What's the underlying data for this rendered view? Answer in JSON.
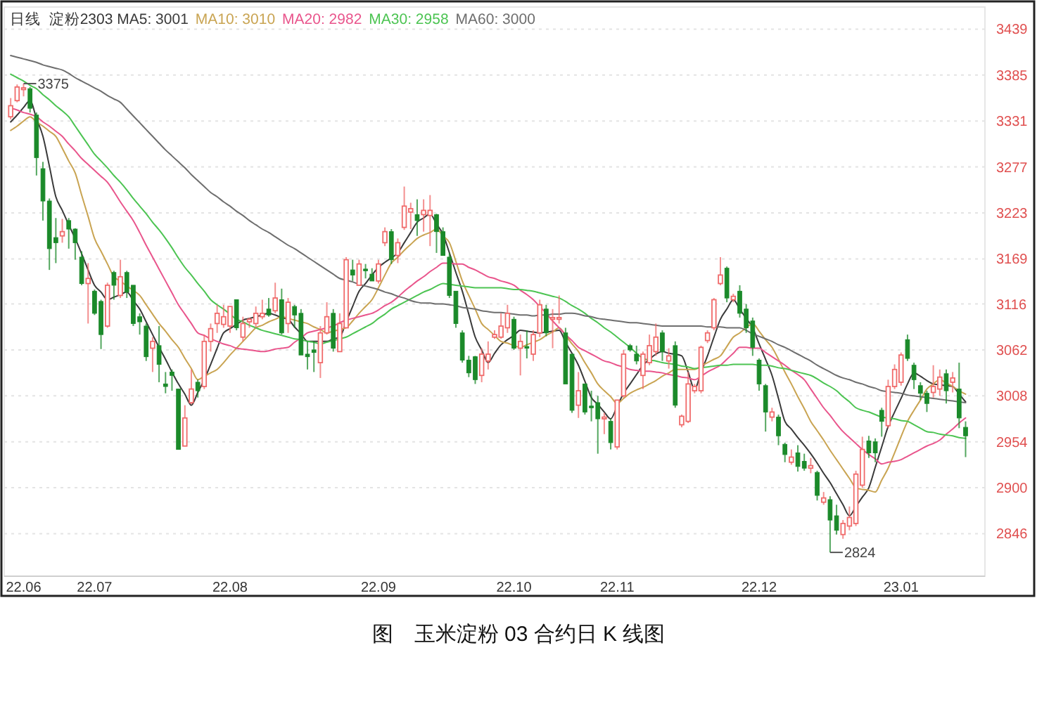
{
  "chart_data": {
    "type": "candlestick",
    "title": "图　玉米淀粉 03 合约日 K 线图",
    "legend_title": "日线  淀粉2303",
    "legend": "top left",
    "grid": "y",
    "marker": "none",
    "line_style": "solid",
    "categories": [
      null,
      null,
      "22.06",
      null,
      null,
      null,
      null,
      null,
      null,
      null,
      null,
      null,
      null,
      "22.07",
      null,
      null,
      null,
      null,
      null,
      null,
      null,
      null,
      null,
      null,
      null,
      null,
      null,
      null,
      null,
      null,
      null,
      null,
      null,
      null,
      "22.08",
      null,
      null,
      null,
      null,
      null,
      null,
      null,
      null,
      null,
      null,
      null,
      null,
      null,
      null,
      null,
      null,
      null,
      null,
      null,
      null,
      null,
      null,
      "22.09",
      null,
      null,
      null,
      null,
      null,
      null,
      null,
      null,
      null,
      null,
      null,
      null,
      null,
      null,
      null,
      null,
      null,
      null,
      null,
      null,
      "22.10",
      null,
      null,
      null,
      null,
      null,
      null,
      null,
      null,
      null,
      null,
      null,
      null,
      null,
      null,
      null,
      "22.11",
      null,
      null,
      null,
      null,
      null,
      null,
      null,
      null,
      null,
      null,
      null,
      null,
      null,
      null,
      null,
      null,
      null,
      null,
      null,
      null,
      null,
      "22.12",
      null,
      null,
      null,
      null,
      null,
      null,
      null,
      null,
      null,
      null,
      null,
      null,
      null,
      null,
      null,
      null,
      null,
      null,
      null,
      null,
      null,
      "23.01",
      null,
      null,
      null,
      null,
      null,
      null,
      null,
      null,
      null,
      null
    ],
    "ylim": [
      2796,
      3465
    ],
    "yticks": [
      3439,
      3385,
      3331,
      3277,
      3223,
      3169,
      3116,
      3062,
      3008,
      2954,
      2900,
      2846
    ],
    "ohlc": [
      [
        3336,
        3358,
        3333,
        3349
      ],
      [
        3355,
        3374,
        3353,
        3371
      ],
      [
        3368,
        3375,
        3360,
        3370
      ],
      [
        3369,
        3371,
        3341,
        3346
      ],
      [
        3338,
        3341,
        3267,
        3288
      ],
      [
        3275,
        3283,
        3214,
        3237
      ],
      [
        3237,
        3240,
        3156,
        3181
      ],
      [
        3194,
        3217,
        3164,
        3188
      ],
      [
        3196,
        3216,
        3188,
        3201
      ],
      [
        3214,
        3217,
        3181,
        3204
      ],
      [
        3204,
        3205,
        3168,
        3188
      ],
      [
        3171,
        3178,
        3138,
        3140
      ],
      [
        3140,
        3164,
        3093,
        3146
      ],
      [
        3131,
        3133,
        3103,
        3105
      ],
      [
        3119,
        3121,
        3063,
        3080
      ],
      [
        3090,
        3141,
        3088,
        3138
      ],
      [
        3153,
        3155,
        3121,
        3138
      ],
      [
        3126,
        3168,
        3123,
        3148
      ],
      [
        3153,
        3155,
        3123,
        3130
      ],
      [
        3138,
        3138,
        3090,
        3093
      ],
      [
        3101,
        3105,
        3080,
        3095
      ],
      [
        3090,
        3093,
        3049,
        3054
      ],
      [
        3064,
        3077,
        3036,
        3072
      ],
      [
        3067,
        3090,
        3024,
        3045
      ],
      [
        3022,
        3036,
        3011,
        3019
      ],
      [
        3036,
        3039,
        3014,
        3032
      ],
      [
        3016,
        3016,
        2945,
        2945
      ],
      [
        2949,
        2997,
        2949,
        2982
      ],
      [
        3000,
        3039,
        2998,
        3016
      ],
      [
        3024,
        3027,
        3006,
        3014
      ],
      [
        3019,
        3080,
        3016,
        3072
      ],
      [
        3072,
        3093,
        3060,
        3087
      ],
      [
        3093,
        3115,
        3082,
        3105
      ],
      [
        3092,
        3115,
        3088,
        3101
      ],
      [
        3090,
        3113,
        3082,
        3113
      ],
      [
        3121,
        3121,
        3085,
        3088
      ],
      [
        3077,
        3101,
        3072,
        3093
      ],
      [
        3095,
        3100,
        3088,
        3098
      ],
      [
        3093,
        3113,
        3088,
        3105
      ],
      [
        3101,
        3121,
        3098,
        3105
      ],
      [
        3110,
        3123,
        3101,
        3103
      ],
      [
        3108,
        3141,
        3105,
        3123
      ],
      [
        3121,
        3134,
        3080,
        3082
      ],
      [
        3093,
        3123,
        3082,
        3118
      ],
      [
        3113,
        3115,
        3088,
        3103
      ],
      [
        3105,
        3110,
        3056,
        3056
      ],
      [
        3057,
        3072,
        3039,
        3054
      ],
      [
        3062,
        3072,
        3036,
        3059
      ],
      [
        3047,
        3090,
        3029,
        3082
      ],
      [
        3082,
        3118,
        3080,
        3101
      ],
      [
        3105,
        3110,
        3060,
        3064
      ],
      [
        3060,
        3105,
        3060,
        3093
      ],
      [
        3088,
        3171,
        3088,
        3168
      ],
      [
        3156,
        3168,
        3143,
        3150
      ],
      [
        3138,
        3168,
        3138,
        3163
      ],
      [
        3157,
        3163,
        3146,
        3155
      ],
      [
        3151,
        3158,
        3143,
        3143
      ],
      [
        3143,
        3168,
        3140,
        3163
      ],
      [
        3188,
        3206,
        3184,
        3201
      ],
      [
        3201,
        3204,
        3163,
        3168
      ],
      [
        3173,
        3193,
        3164,
        3188
      ],
      [
        3206,
        3254,
        3203,
        3231
      ],
      [
        3224,
        3235,
        3204,
        3228
      ],
      [
        3221,
        3239,
        3196,
        3214
      ],
      [
        3221,
        3239,
        3201,
        3226
      ],
      [
        3220,
        3244,
        3184,
        3226
      ],
      [
        3221,
        3222,
        3176,
        3201
      ],
      [
        3201,
        3206,
        3173,
        3173
      ],
      [
        3171,
        3176,
        3123,
        3126
      ],
      [
        3131,
        3131,
        3088,
        3093
      ],
      [
        3082,
        3085,
        3047,
        3050
      ],
      [
        3050,
        3055,
        3030,
        3035
      ],
      [
        3054,
        3055,
        3022,
        3027
      ],
      [
        3032,
        3064,
        3024,
        3057
      ],
      [
        3049,
        3072,
        3039,
        3057
      ],
      [
        3077,
        3085,
        3075,
        3080
      ],
      [
        3077,
        3105,
        3075,
        3090
      ],
      [
        3088,
        3115,
        3082,
        3105
      ],
      [
        3098,
        3101,
        3062,
        3064
      ],
      [
        3064,
        3080,
        3032,
        3072
      ],
      [
        3066,
        3085,
        3052,
        3064
      ],
      [
        3057,
        3085,
        3049,
        3080
      ],
      [
        3082,
        3121,
        3077,
        3115
      ],
      [
        3110,
        3115,
        3078,
        3082
      ],
      [
        3098,
        3110,
        3064,
        3100
      ],
      [
        3098,
        3126,
        3093,
        3100
      ],
      [
        3082,
        3088,
        3022,
        3022
      ],
      [
        3057,
        3057,
        2988,
        2991
      ],
      [
        2997,
        3036,
        2982,
        3014
      ],
      [
        3022,
        3022,
        2986,
        2989
      ],
      [
        2996,
        3014,
        2978,
        2994
      ],
      [
        3000,
        3008,
        2940,
        2981
      ],
      [
        2981,
        2988,
        2963,
        2983
      ],
      [
        2978,
        2981,
        2945,
        2953
      ],
      [
        2948,
        3003,
        2945,
        3003
      ],
      [
        3008,
        3062,
        3006,
        3057
      ],
      [
        3067,
        3069,
        3060,
        3062
      ],
      [
        3057,
        3067,
        3045,
        3049
      ],
      [
        3032,
        3060,
        3016,
        3057
      ],
      [
        3047,
        3080,
        3044,
        3067
      ],
      [
        3060,
        3093,
        3055,
        3077
      ],
      [
        3082,
        3085,
        3049,
        3060
      ],
      [
        3049,
        3064,
        3040,
        3055
      ],
      [
        3067,
        3072,
        2994,
        2997
      ],
      [
        2974,
        2986,
        2971,
        2984
      ],
      [
        2978,
        3036,
        2976,
        3022
      ],
      [
        3014,
        3022,
        3011,
        3019
      ],
      [
        3014,
        3067,
        3011,
        3065
      ],
      [
        3073,
        3085,
        3070,
        3082
      ],
      [
        3088,
        3123,
        3085,
        3121
      ],
      [
        3140,
        3171,
        3138,
        3150
      ],
      [
        3158,
        3160,
        3118,
        3123
      ],
      [
        3121,
        3128,
        3118,
        3125
      ],
      [
        3131,
        3138,
        3100,
        3105
      ],
      [
        3110,
        3116,
        3082,
        3088
      ],
      [
        3096,
        3100,
        3055,
        3065
      ],
      [
        3050,
        3052,
        3014,
        3022
      ],
      [
        3020,
        3022,
        2966,
        2989
      ],
      [
        2983,
        2994,
        2978,
        2989
      ],
      [
        2983,
        2986,
        2950,
        2961
      ],
      [
        2951,
        2953,
        2930,
        2939
      ],
      [
        2930,
        2945,
        2927,
        2936
      ],
      [
        2941,
        2950,
        2919,
        2925
      ],
      [
        2931,
        2940,
        2920,
        2923
      ],
      [
        2923,
        2935,
        2917,
        2926
      ],
      [
        2918,
        2920,
        2885,
        2891
      ],
      [
        2883,
        2895,
        2880,
        2888
      ],
      [
        2886,
        2890,
        2824,
        2862
      ],
      [
        2867,
        2880,
        2845,
        2850
      ],
      [
        2845,
        2862,
        2840,
        2858
      ],
      [
        2855,
        2878,
        2850,
        2865
      ],
      [
        2858,
        2920,
        2855,
        2916
      ],
      [
        2903,
        2960,
        2900,
        2945
      ],
      [
        2955,
        2961,
        2935,
        2941
      ],
      [
        2954,
        2958,
        2930,
        2941
      ],
      [
        2991,
        2994,
        2960,
        2978
      ],
      [
        2973,
        3027,
        2970,
        3019
      ],
      [
        3019,
        3045,
        3016,
        3039
      ],
      [
        3024,
        3059,
        3020,
        3056
      ],
      [
        3074,
        3080,
        3049,
        3052
      ],
      [
        3044,
        3047,
        3016,
        3027
      ],
      [
        3020,
        3024,
        3003,
        3011
      ],
      [
        3011,
        3014,
        2989,
        2999
      ],
      [
        3012,
        3044,
        3006,
        3019
      ],
      [
        3016,
        3039,
        3008,
        3030
      ],
      [
        3034,
        3039,
        2999,
        3014
      ],
      [
        3024,
        3036,
        3012,
        3029
      ],
      [
        3016,
        3047,
        2970,
        2982
      ],
      [
        2971,
        2978,
        2936,
        2961
      ]
    ],
    "series": [
      {
        "type": "line",
        "name": "MA5: 3001",
        "color": "#3a3a3a",
        "values": [
          3330,
          3338,
          3347,
          3355,
          3334,
          3313,
          3278,
          3242,
          3226,
          3209,
          3193,
          3175,
          3156,
          3138,
          3130,
          3121,
          3124,
          3127,
          3130,
          3120,
          3110,
          3095,
          3080,
          3065,
          3051,
          3036,
          3022,
          3010,
          2997,
          3012,
          3027,
          3045,
          3064,
          3082,
          3087,
          3092,
          3097,
          3099,
          3101,
          3103,
          3105,
          3103,
          3100,
          3098,
          3089,
          3081,
          3072,
          3072,
          3072,
          3072,
          3075,
          3077,
          3095,
          3113,
          3131,
          3140,
          3150,
          3159,
          3165,
          3170,
          3176,
          3188,
          3200,
          3212,
          3217,
          3222,
          3210,
          3198,
          3176,
          3153,
          3131,
          3104,
          3077,
          3062,
          3047,
          3058,
          3068,
          3074,
          3079,
          3085,
          3084,
          3083,
          3082,
          3083,
          3084,
          3085,
          3071,
          3058,
          3044,
          3025,
          3006,
          2998,
          2989,
          2981,
          2996,
          3011,
          3022,
          3033,
          3044,
          3051,
          3057,
          3060,
          3058,
          3057,
          3055,
          3036,
          3016,
          3036,
          3055,
          3077,
          3098,
          3110,
          3121,
          3110,
          3099,
          3088,
          3069,
          3051,
          3032,
          3005,
          2978,
          2969,
          2959,
          2950,
          2940,
          2929,
          2917,
          2906,
          2893,
          2880,
          2867,
          2878,
          2889,
          2900,
          2924,
          2948,
          2972,
          2989,
          3005,
          3022,
          3035,
          3031,
          3026,
          3022,
          3021,
          3020,
          3019,
          3010,
          3001
        ]
      },
      {
        "type": "line",
        "name": "MA10: 3010",
        "color": "#c9a452",
        "values": [
          3320,
          3325,
          3331,
          3336,
          3330,
          3325,
          3319,
          3313,
          3299,
          3284,
          3270,
          3244,
          3219,
          3193,
          3178,
          3163,
          3148,
          3143,
          3137,
          3132,
          3126,
          3115,
          3104,
          3093,
          3084,
          3074,
          3065,
          3052,
          3040,
          3027,
          3031,
          3035,
          3039,
          3047,
          3056,
          3064,
          3072,
          3080,
          3088,
          3091,
          3095,
          3098,
          3101,
          3099,
          3097,
          3095,
          3093,
          3089,
          3086,
          3082,
          3084,
          3086,
          3088,
          3096,
          3105,
          3113,
          3121,
          3135,
          3150,
          3164,
          3171,
          3179,
          3186,
          3193,
          3197,
          3200,
          3204,
          3196,
          3188,
          3166,
          3143,
          3126,
          3110,
          3093,
          3086,
          3079,
          3072,
          3070,
          3067,
          3065,
          3068,
          3071,
          3074,
          3079,
          3083,
          3088,
          3079,
          3069,
          3060,
          3047,
          3035,
          3022,
          3014,
          3007,
          2999,
          3005,
          3011,
          3015,
          3018,
          3022,
          3026,
          3031,
          3035,
          3039,
          3039,
          3039,
          3039,
          3043,
          3047,
          3051,
          3055,
          3066,
          3077,
          3082,
          3088,
          3093,
          3084,
          3074,
          3065,
          3051,
          3036,
          3022,
          3007,
          2993,
          2978,
          2967,
          2956,
          2944,
          2933,
          2922,
          2911,
          2900,
          2898,
          2897,
          2895,
          2909,
          2923,
          2941,
          2960,
          2978,
          2991,
          3003,
          3016,
          3022,
          3027,
          3023,
          3019,
          3014,
          3010
        ]
      },
      {
        "type": "line",
        "name": "MA20: 2982",
        "color": "#e9558c",
        "values": [
          3346,
          3344,
          3341,
          3339,
          3336,
          3330,
          3325,
          3319,
          3313,
          3304,
          3296,
          3287,
          3280,
          3273,
          3266,
          3259,
          3248,
          3236,
          3225,
          3214,
          3200,
          3185,
          3171,
          3157,
          3143,
          3129,
          3115,
          3104,
          3093,
          3082,
          3079,
          3075,
          3072,
          3069,
          3067,
          3064,
          3063,
          3062,
          3061,
          3060,
          3061,
          3063,
          3064,
          3065,
          3071,
          3076,
          3082,
          3084,
          3086,
          3088,
          3090,
          3094,
          3097,
          3099,
          3101,
          3103,
          3105,
          3109,
          3114,
          3118,
          3124,
          3131,
          3137,
          3143,
          3148,
          3154,
          3159,
          3164,
          3164,
          3163,
          3163,
          3159,
          3156,
          3152,
          3148,
          3146,
          3143,
          3141,
          3138,
          3132,
          3127,
          3121,
          3113,
          3105,
          3096,
          3088,
          3080,
          3073,
          3065,
          3061,
          3057,
          3053,
          3049,
          3047,
          3044,
          3042,
          3039,
          3038,
          3037,
          3037,
          3036,
          3035,
          3033,
          3032,
          3030,
          3029,
          3027,
          3031,
          3036,
          3040,
          3044,
          3051,
          3058,
          3065,
          3065,
          3064,
          3064,
          3059,
          3054,
          3049,
          3044,
          3038,
          3033,
          3027,
          3016,
          3005,
          2994,
          2985,
          2975,
          2966,
          2959,
          2952,
          2945,
          2939,
          2934,
          2928,
          2930,
          2931,
          2933,
          2937,
          2941,
          2945,
          2949,
          2952,
          2956,
          2963,
          2969,
          2976,
          2982
        ]
      },
      {
        "type": "line",
        "name": "MA30: 2958",
        "color": "#4cc452",
        "values": [
          3386,
          3382,
          3378,
          3373,
          3369,
          3362,
          3356,
          3349,
          3343,
          3336,
          3325,
          3314,
          3303,
          3292,
          3284,
          3276,
          3267,
          3259,
          3250,
          3240,
          3231,
          3222,
          3212,
          3203,
          3193,
          3182,
          3170,
          3159,
          3150,
          3140,
          3131,
          3121,
          3115,
          3110,
          3104,
          3098,
          3095,
          3091,
          3088,
          3085,
          3083,
          3081,
          3079,
          3077,
          3075,
          3074,
          3072,
          3071,
          3069,
          3071,
          3073,
          3075,
          3077,
          3081,
          3085,
          3089,
          3093,
          3099,
          3104,
          3110,
          3114,
          3118,
          3122,
          3126,
          3130,
          3133,
          3137,
          3140,
          3139,
          3138,
          3137,
          3136,
          3135,
          3135,
          3135,
          3135,
          3135,
          3134,
          3133,
          3133,
          3132,
          3131,
          3129,
          3127,
          3125,
          3123,
          3119,
          3114,
          3110,
          3105,
          3099,
          3094,
          3088,
          3083,
          3077,
          3071,
          3065,
          3058,
          3052,
          3050,
          3049,
          3047,
          3046,
          3045,
          3043,
          3042,
          3040,
          3041,
          3042,
          3043,
          3044,
          3044,
          3045,
          3045,
          3045,
          3045,
          3044,
          3044,
          3043,
          3041,
          3040,
          3038,
          3036,
          3034,
          3032,
          3028,
          3023,
          3019,
          3014,
          3007,
          3001,
          2994,
          2991,
          2989,
          2986,
          2983,
          2982,
          2981,
          2979,
          2978,
          2974,
          2970,
          2966,
          2965,
          2963,
          2962,
          2961,
          2959,
          2958
        ]
      },
      {
        "type": "line",
        "name": "MA60: 3000",
        "color": "#6e6e6e",
        "values": [
          3408,
          3406,
          3404,
          3402,
          3400,
          3397,
          3395,
          3393,
          3391,
          3387,
          3382,
          3378,
          3374,
          3370,
          3366,
          3361,
          3357,
          3353,
          3345,
          3337,
          3329,
          3321,
          3313,
          3305,
          3297,
          3290,
          3283,
          3276,
          3268,
          3261,
          3254,
          3247,
          3242,
          3236,
          3231,
          3225,
          3220,
          3214,
          3209,
          3204,
          3200,
          3195,
          3190,
          3185,
          3181,
          3176,
          3171,
          3166,
          3161,
          3156,
          3151,
          3146,
          3144,
          3142,
          3139,
          3137,
          3135,
          3133,
          3130,
          3128,
          3125,
          3123,
          3120,
          3118,
          3117,
          3117,
          3116,
          3116,
          3115,
          3114,
          3112,
          3111,
          3110,
          3108,
          3107,
          3106,
          3106,
          3105,
          3104,
          3103,
          3103,
          3102,
          3103,
          3103,
          3104,
          3104,
          3105,
          3105,
          3104,
          3102,
          3101,
          3099,
          3098,
          3097,
          3096,
          3095,
          3094,
          3094,
          3093,
          3092,
          3091,
          3090,
          3090,
          3090,
          3090,
          3090,
          3090,
          3090,
          3089,
          3089,
          3089,
          3088,
          3088,
          3088,
          3085,
          3081,
          3078,
          3075,
          3072,
          3068,
          3065,
          3061,
          3057,
          3053,
          3049,
          3044,
          3040,
          3036,
          3032,
          3029,
          3027,
          3024,
          3022,
          3019,
          3017,
          3014,
          3013,
          3012,
          3011,
          3009,
          3008,
          3007,
          3006,
          3005,
          3004,
          3003,
          3002,
          3001,
          3000
        ]
      }
    ],
    "annotations": [
      "3375",
      "2824"
    ]
  }
}
